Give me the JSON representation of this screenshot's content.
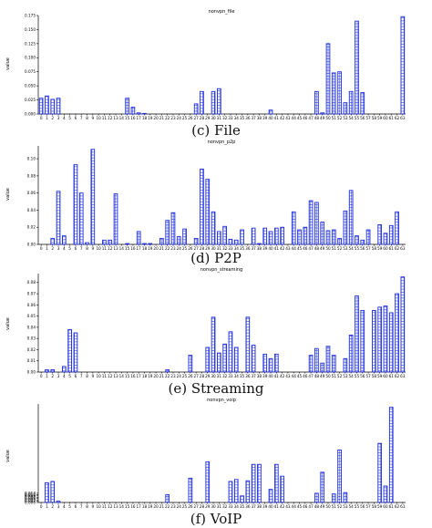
{
  "chart_data": [
    {
      "type": "bar",
      "title": "nonvpn_file",
      "caption": "(c) File",
      "xlabel": "",
      "ylabel": "value",
      "ylim": [
        0,
        0.175
      ],
      "yticks": [
        0.0,
        0.025,
        0.05,
        0.075,
        0.1,
        0.125,
        0.15,
        0.175
      ],
      "ytick_labels": [
        "0.000",
        "0.025",
        "0.050",
        "0.075",
        "0.100",
        "0.125",
        "0.150",
        "0.175"
      ],
      "categories": [
        "0",
        "1",
        "2",
        "3",
        "4",
        "5",
        "6",
        "7",
        "8",
        "9",
        "10",
        "11",
        "12",
        "13",
        "14",
        "15",
        "16",
        "17",
        "18",
        "19",
        "20",
        "21",
        "22",
        "23",
        "24",
        "25",
        "26",
        "27",
        "28",
        "29",
        "30",
        "31",
        "32",
        "33",
        "34",
        "35",
        "36",
        "37",
        "38",
        "39",
        "40",
        "41",
        "42",
        "43",
        "44",
        "45",
        "46",
        "47",
        "48",
        "49",
        "50",
        "51",
        "52",
        "53",
        "54",
        "55",
        "56",
        "57",
        "58",
        "59",
        "60",
        "61",
        "62",
        "63"
      ],
      "values": [
        0.028,
        0.032,
        0.026,
        0.028,
        0,
        0,
        0,
        0,
        0,
        0,
        0,
        0,
        0,
        0,
        0,
        0.028,
        0.012,
        0.002,
        0.001,
        0,
        0,
        0,
        0,
        0,
        0,
        0,
        0,
        0.018,
        0.04,
        0,
        0.04,
        0.045,
        0,
        0,
        0,
        0,
        0,
        0,
        0,
        0,
        0.007,
        0,
        0,
        0,
        0,
        0,
        0,
        0,
        0.04,
        0.002,
        0.125,
        0.073,
        0.075,
        0.02,
        0.04,
        0.165,
        0.038,
        0,
        0,
        0,
        0,
        0,
        0,
        0.173
      ]
    },
    {
      "type": "bar",
      "title": "nonvpn_p2p",
      "caption": "(d) P2P",
      "xlabel": "",
      "ylabel": "value",
      "ylim": [
        0,
        0.115
      ],
      "yticks": [
        0.0,
        0.02,
        0.04,
        0.06,
        0.08,
        0.1
      ],
      "ytick_labels": [
        "0.00",
        "0.02",
        "0.04",
        "0.06",
        "0.08",
        "0.10"
      ],
      "categories": [
        "0",
        "1",
        "2",
        "3",
        "4",
        "5",
        "6",
        "7",
        "8",
        "9",
        "10",
        "11",
        "12",
        "13",
        "14",
        "15",
        "16",
        "17",
        "18",
        "19",
        "20",
        "21",
        "22",
        "23",
        "24",
        "25",
        "26",
        "27",
        "28",
        "29",
        "30",
        "31",
        "32",
        "33",
        "34",
        "35",
        "36",
        "37",
        "38",
        "39",
        "40",
        "41",
        "42",
        "43",
        "44",
        "45",
        "46",
        "47",
        "48",
        "49",
        "50",
        "51",
        "52",
        "53",
        "54",
        "55",
        "56",
        "57",
        "58",
        "59",
        "60",
        "61",
        "62",
        "63"
      ],
      "values": [
        0,
        0,
        0.007,
        0.062,
        0.01,
        0,
        0.093,
        0.06,
        0.002,
        0.111,
        0,
        0.005,
        0.005,
        0.059,
        0,
        0.001,
        0,
        0.015,
        0.001,
        0.001,
        0,
        0.007,
        0.028,
        0.037,
        0.009,
        0.018,
        0,
        0.007,
        0.088,
        0.076,
        0.038,
        0.015,
        0.021,
        0.006,
        0.005,
        0.017,
        0,
        0.019,
        0.001,
        0.019,
        0.015,
        0.019,
        0.02,
        0,
        0.038,
        0.017,
        0.02,
        0.051,
        0.049,
        0.026,
        0.016,
        0.017,
        0.007,
        0.039,
        0.063,
        0.01,
        0.005,
        0.017,
        0,
        0.023,
        0.013,
        0.022,
        0.038,
        0
      ]
    },
    {
      "type": "bar",
      "title": "nonvpn_streaming",
      "caption": "(e) Streaming",
      "xlabel": "",
      "ylabel": "value",
      "ylim": [
        0,
        0.088
      ],
      "yticks": [
        0.0,
        0.01,
        0.02,
        0.03,
        0.04,
        0.05,
        0.06,
        0.07,
        0.08
      ],
      "ytick_labels": [
        "0.00",
        "0.01",
        "0.02",
        "0.03",
        "0.04",
        "0.05",
        "0.06",
        "0.07",
        "0.08"
      ],
      "categories": [
        "0",
        "1",
        "2",
        "3",
        "4",
        "5",
        "6",
        "7",
        "8",
        "9",
        "10",
        "11",
        "12",
        "13",
        "14",
        "15",
        "16",
        "17",
        "18",
        "19",
        "20",
        "21",
        "22",
        "23",
        "24",
        "25",
        "26",
        "27",
        "28",
        "29",
        "30",
        "31",
        "32",
        "33",
        "34",
        "35",
        "36",
        "37",
        "38",
        "39",
        "40",
        "41",
        "42",
        "43",
        "44",
        "45",
        "46",
        "47",
        "48",
        "49",
        "50",
        "51",
        "52",
        "53",
        "54",
        "55",
        "56",
        "57",
        "58",
        "59",
        "60",
        "61",
        "62",
        "63"
      ],
      "values": [
        0,
        0.002,
        0.002,
        0,
        0.005,
        0.038,
        0.035,
        0,
        0,
        0,
        0,
        0,
        0,
        0,
        0,
        0,
        0,
        0,
        0,
        0,
        0,
        0,
        0.002,
        0,
        0,
        0,
        0.015,
        0,
        0,
        0.022,
        0.049,
        0.017,
        0.025,
        0.036,
        0.022,
        0,
        0.049,
        0.024,
        0,
        0.016,
        0.012,
        0.016,
        0,
        0,
        0,
        0,
        0,
        0.015,
        0.021,
        0.008,
        0.023,
        0.015,
        0,
        0.012,
        0.033,
        0.068,
        0.055,
        0,
        0.055,
        0.058,
        0.059,
        0.053,
        0.07,
        0.085
      ]
    },
    {
      "type": "bar",
      "title": "nonvpn_voip",
      "caption": "(f) VoIP",
      "xlabel": "",
      "ylabel": "value",
      "ylim": [
        0,
        0.15
      ],
      "yticks": [
        0.0,
        0.002,
        0.004,
        0.006,
        0.008,
        0.01,
        0.012,
        0.014
      ],
      "ytick_labels": [
        "0.000",
        "0.002",
        "0.004",
        "0.006",
        "0.008",
        "0.010",
        "0.012",
        "0.014"
      ],
      "categories": [
        "0",
        "1",
        "2",
        "3",
        "4",
        "5",
        "6",
        "7",
        "8",
        "9",
        "10",
        "11",
        "12",
        "13",
        "14",
        "15",
        "16",
        "17",
        "18",
        "19",
        "20",
        "21",
        "22",
        "23",
        "24",
        "25",
        "26",
        "27",
        "28",
        "29",
        "30",
        "31",
        "32",
        "33",
        "34",
        "35",
        "36",
        "37",
        "38",
        "39",
        "40",
        "41",
        "42",
        "43",
        "44",
        "45",
        "46",
        "47",
        "48",
        "49",
        "50",
        "51",
        "52",
        "53",
        "54",
        "55",
        "56",
        "57",
        "58",
        "59",
        "60",
        "61",
        "62",
        "63"
      ],
      "values": [
        0,
        0.03,
        0.032,
        0.002,
        0,
        0,
        0,
        0,
        0,
        0,
        0,
        0,
        0,
        0,
        0,
        0,
        0,
        0,
        0,
        0,
        0,
        0,
        0.012,
        0,
        0,
        0,
        0.037,
        0,
        0,
        0.062,
        0,
        0,
        0,
        0.032,
        0.035,
        0.01,
        0.033,
        0.058,
        0.058,
        0,
        0.02,
        0.058,
        0.04,
        0,
        0,
        0,
        0,
        0,
        0.014,
        0.046,
        0,
        0.013,
        0.08,
        0.015,
        0,
        0,
        0,
        0,
        0,
        0.09,
        0.025,
        0.145,
        0,
        0
      ]
    }
  ]
}
